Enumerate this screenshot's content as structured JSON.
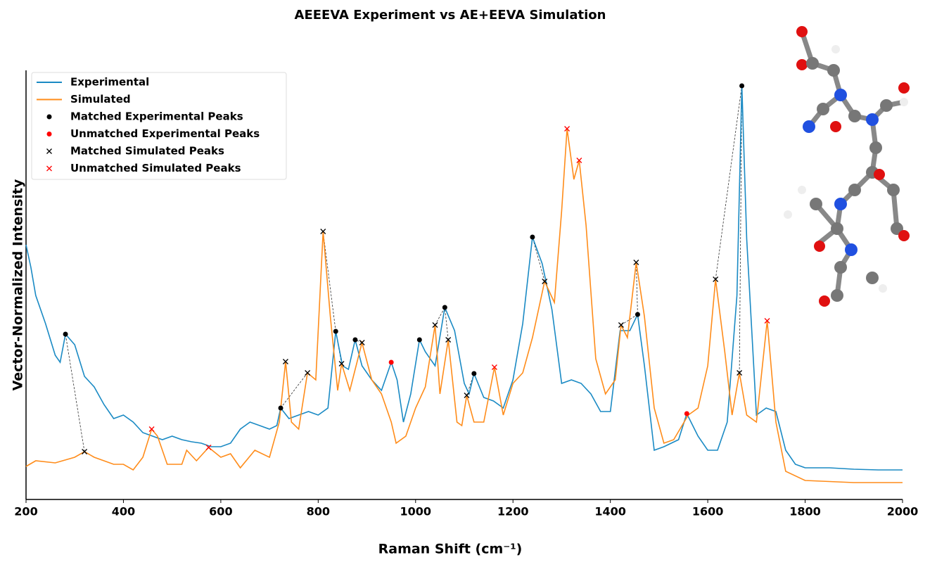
{
  "chart_data": {
    "type": "line",
    "title": "AEEEVA Experiment vs AE+EEVA Simulation",
    "x_label": "Raman Shift (cm⁻¹)",
    "y_label": "Vector-Normalized Intensity",
    "xlim": [
      200,
      2000
    ],
    "xticks": [
      200,
      400,
      600,
      800,
      1000,
      1200,
      1400,
      1600,
      1800,
      2000
    ],
    "ylim": [
      0,
      0.6
    ],
    "legend": "upper left",
    "series": [
      {
        "name": "Experimental",
        "kind": "line",
        "color": "#1a8ac4",
        "x": [
          200,
          210,
          220,
          240,
          260,
          270,
          281,
          300,
          320,
          340,
          360,
          380,
          400,
          420,
          440,
          460,
          480,
          500,
          520,
          540,
          560,
          580,
          600,
          620,
          640,
          660,
          680,
          700,
          715,
          723,
          740,
          760,
          780,
          800,
          820,
          836,
          850,
          862,
          876,
          890,
          910,
          930,
          950,
          962,
          975,
          990,
          1008,
          1020,
          1040,
          1060,
          1080,
          1100,
          1110,
          1120,
          1140,
          1160,
          1180,
          1200,
          1220,
          1240,
          1260,
          1280,
          1300,
          1320,
          1340,
          1360,
          1380,
          1400,
          1420,
          1440,
          1456,
          1470,
          1490,
          1510,
          1540,
          1557,
          1580,
          1600,
          1620,
          1640,
          1660,
          1670,
          1680,
          1700,
          1720,
          1740,
          1760,
          1780,
          1800,
          1850,
          1900,
          1950,
          2000
        ],
        "values": [
          0.362,
          0.33,
          0.29,
          0.25,
          0.205,
          0.195,
          0.235,
          0.22,
          0.175,
          0.16,
          0.135,
          0.115,
          0.12,
          0.11,
          0.095,
          0.09,
          0.085,
          0.09,
          0.085,
          0.082,
          0.08,
          0.075,
          0.075,
          0.08,
          0.1,
          0.11,
          0.105,
          0.1,
          0.105,
          0.13,
          0.115,
          0.12,
          0.125,
          0.12,
          0.13,
          0.239,
          0.19,
          0.185,
          0.227,
          0.19,
          0.17,
          0.155,
          0.195,
          0.17,
          0.11,
          0.15,
          0.227,
          0.21,
          0.19,
          0.273,
          0.24,
          0.165,
          0.15,
          0.179,
          0.145,
          0.14,
          0.13,
          0.17,
          0.25,
          0.373,
          0.335,
          0.27,
          0.165,
          0.17,
          0.165,
          0.15,
          0.125,
          0.125,
          0.24,
          0.24,
          0.263,
          0.19,
          0.07,
          0.075,
          0.085,
          0.122,
          0.09,
          0.07,
          0.07,
          0.11,
          0.29,
          0.588,
          0.37,
          0.12,
          0.13,
          0.125,
          0.07,
          0.05,
          0.045,
          0.045,
          0.043,
          0.042,
          0.042
        ]
      },
      {
        "name": "Simulated",
        "kind": "line",
        "color": "#ff8c1a",
        "x": [
          200,
          220,
          260,
          300,
          320,
          340,
          360,
          380,
          400,
          420,
          440,
          458,
          470,
          490,
          520,
          530,
          550,
          575,
          600,
          620,
          640,
          670,
          700,
          720,
          733,
          745,
          760,
          778,
          795,
          810,
          825,
          840,
          848,
          865,
          890,
          910,
          930,
          950,
          960,
          980,
          1000,
          1020,
          1040,
          1050,
          1067,
          1085,
          1095,
          1105,
          1120,
          1140,
          1162,
          1180,
          1200,
          1220,
          1240,
          1265,
          1285,
          1300,
          1311,
          1325,
          1336,
          1350,
          1370,
          1390,
          1410,
          1422,
          1435,
          1453,
          1470,
          1490,
          1510,
          1530,
          1560,
          1580,
          1600,
          1616,
          1635,
          1650,
          1665,
          1680,
          1700,
          1722,
          1740,
          1760,
          1800,
          1900,
          2000
        ],
        "values": [
          0.047,
          0.055,
          0.052,
          0.06,
          0.068,
          0.06,
          0.055,
          0.05,
          0.05,
          0.042,
          0.06,
          0.1,
          0.09,
          0.05,
          0.05,
          0.07,
          0.055,
          0.074,
          0.06,
          0.065,
          0.045,
          0.07,
          0.06,
          0.11,
          0.196,
          0.11,
          0.1,
          0.18,
          0.17,
          0.381,
          0.26,
          0.155,
          0.193,
          0.155,
          0.223,
          0.17,
          0.15,
          0.11,
          0.08,
          0.09,
          0.13,
          0.16,
          0.248,
          0.15,
          0.227,
          0.11,
          0.105,
          0.148,
          0.11,
          0.11,
          0.188,
          0.12,
          0.165,
          0.18,
          0.23,
          0.31,
          0.28,
          0.41,
          0.527,
          0.455,
          0.482,
          0.39,
          0.2,
          0.15,
          0.17,
          0.248,
          0.23,
          0.337,
          0.26,
          0.13,
          0.08,
          0.085,
          0.12,
          0.13,
          0.19,
          0.313,
          0.21,
          0.12,
          0.18,
          0.12,
          0.11,
          0.254,
          0.11,
          0.04,
          0.027,
          0.024,
          0.024
        ]
      },
      {
        "name": "Matched Experimental Peaks",
        "kind": "dot",
        "color": "#000000",
        "x": [
          281,
          723,
          836,
          876,
          1008,
          1060,
          1120,
          1240,
          1456,
          1670
        ],
        "values": [
          0.235,
          0.13,
          0.239,
          0.227,
          0.227,
          0.273,
          0.179,
          0.373,
          0.263,
          0.588
        ]
      },
      {
        "name": "Unmatched Experimental Peaks",
        "kind": "dot",
        "color": "#ff0000",
        "x": [
          950,
          1557
        ],
        "values": [
          0.195,
          0.122
        ]
      },
      {
        "name": "Matched Simulated Peaks",
        "kind": "cross",
        "color": "#000000",
        "x": [
          320,
          733,
          778,
          810,
          848,
          890,
          1040,
          1067,
          1105,
          1265,
          1422,
          1453,
          1616,
          1665
        ],
        "values": [
          0.068,
          0.196,
          0.18,
          0.381,
          0.193,
          0.223,
          0.248,
          0.227,
          0.148,
          0.31,
          0.248,
          0.337,
          0.313,
          0.18
        ]
      },
      {
        "name": "Unmatched Simulated Peaks",
        "kind": "cross",
        "color": "#ff0000",
        "x": [
          458,
          575,
          1162,
          1311,
          1336,
          1722
        ],
        "values": [
          0.1,
          0.074,
          0.188,
          0.527,
          0.482,
          0.254
        ]
      }
    ]
  }
}
